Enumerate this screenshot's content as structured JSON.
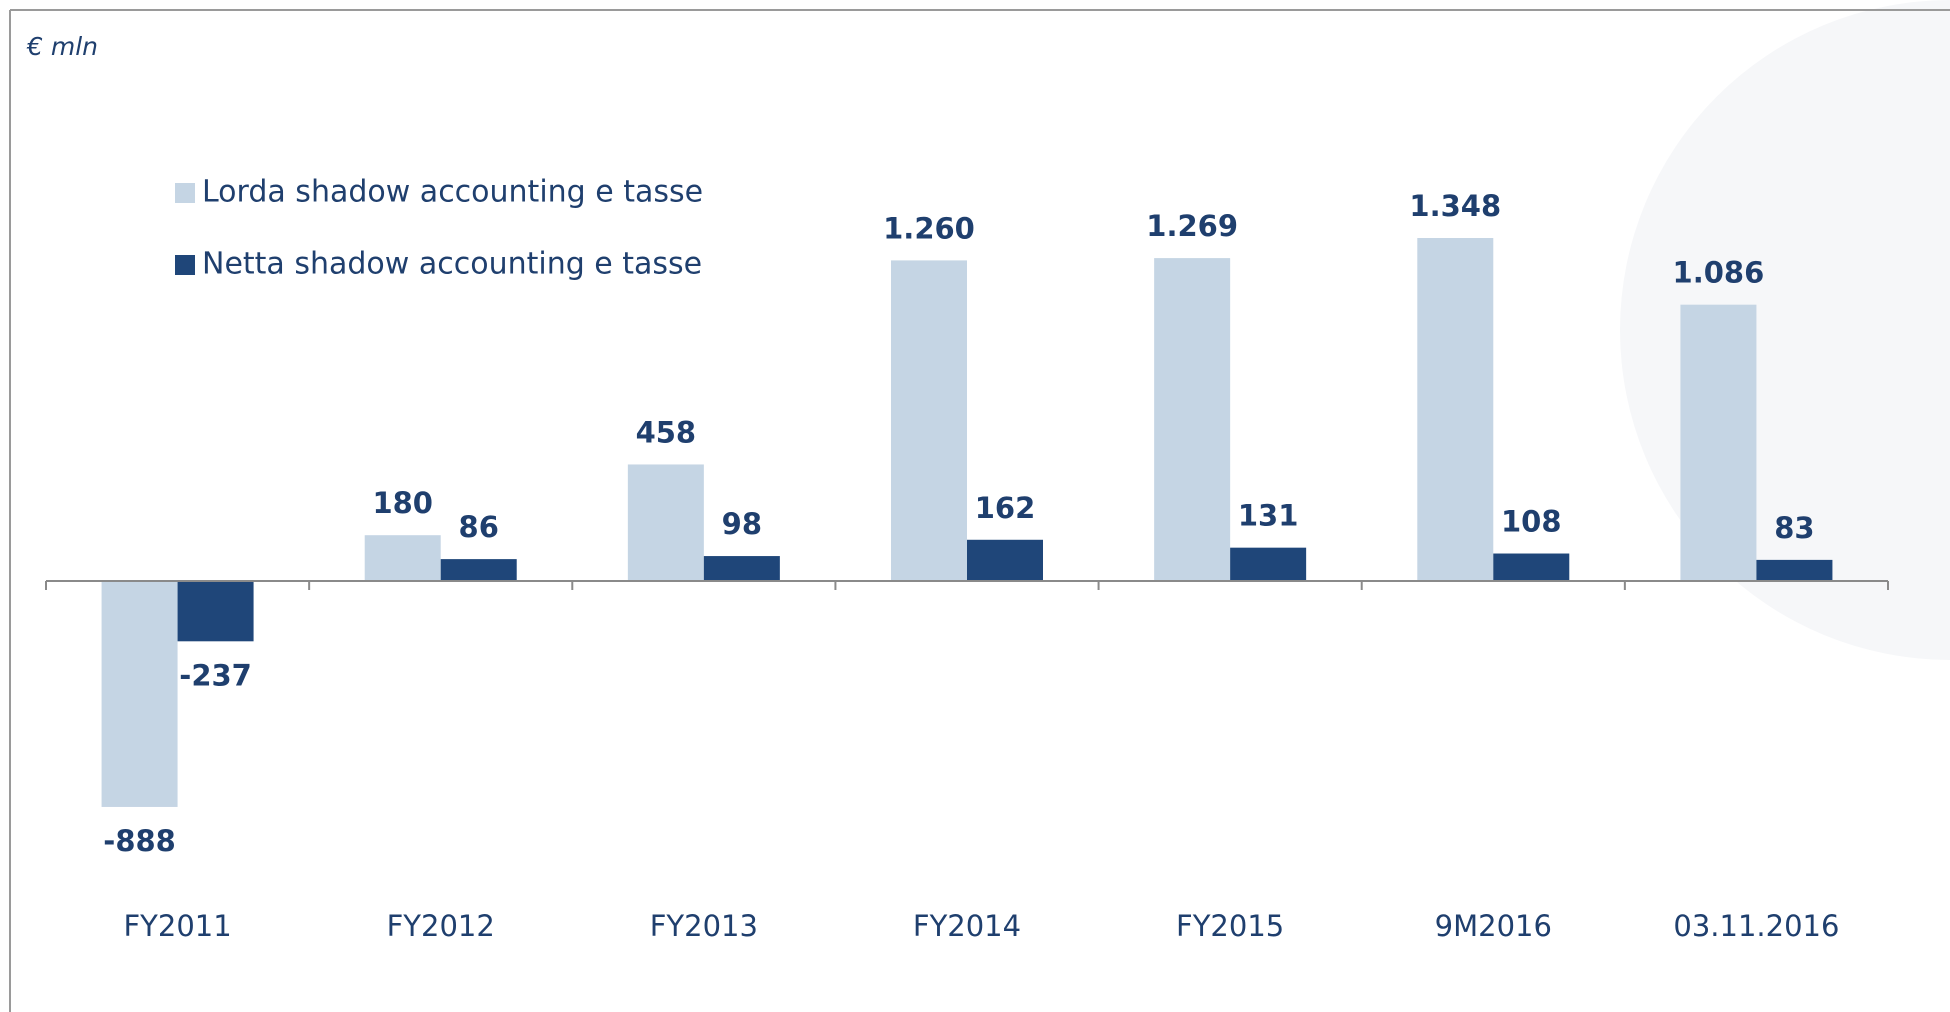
{
  "chart_data": {
    "type": "bar",
    "unit": "€ mln",
    "categories": [
      "FY2011",
      "FY2012",
      "FY2013",
      "FY2014",
      "FY2015",
      "9M2016",
      "03.11.2016"
    ],
    "series": [
      {
        "name": "Lorda shadow accounting e tasse",
        "color": "#c5d5e4",
        "values": [
          -888,
          180,
          458,
          1260,
          1269,
          1348,
          1086
        ],
        "value_labels": [
          "-888",
          "180",
          "458",
          "1.260",
          "1.269",
          "1.348",
          "1.086"
        ]
      },
      {
        "name": "Netta shadow accounting e tasse",
        "color": "#1f4679",
        "values": [
          -237,
          86,
          98,
          162,
          131,
          108,
          83
        ],
        "value_labels": [
          "-237",
          "86",
          "98",
          "162",
          "131",
          "108",
          "83"
        ]
      }
    ]
  }
}
